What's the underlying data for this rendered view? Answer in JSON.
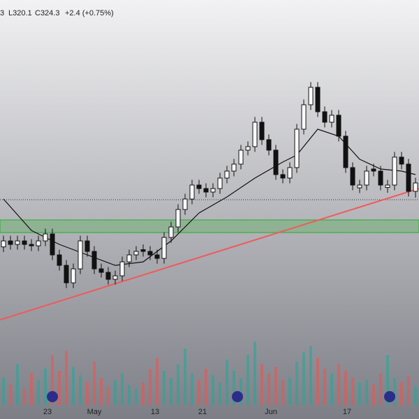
{
  "chart_data": {
    "type": "candlestick",
    "header": {
      "fragment": "3",
      "low": "L320.1",
      "close": "C324.3",
      "change": "+2.4 (+0.75%)"
    },
    "xlim": [
      -0.5,
      59.5
    ],
    "ylim": [
      260.7,
      375.7
    ],
    "xticks": [
      {
        "value": 6.3,
        "label": "23"
      },
      {
        "value": 13,
        "label": "May"
      },
      {
        "value": 21.7,
        "label": "13"
      },
      {
        "value": 28.5,
        "label": "21"
      },
      {
        "value": 38.3,
        "label": "Jun"
      },
      {
        "value": 49.2,
        "label": "17"
      }
    ],
    "up_color": "#26a69a",
    "down_color": "#ef5350",
    "open": [
      306.0,
      307.7,
      306.7,
      307.7,
      306.7,
      306.3,
      307.7,
      309.7,
      303.7,
      300.7,
      295.7,
      299.7,
      307.7,
      304.7,
      299.7,
      298.7,
      296.7,
      297.7,
      301.7,
      303.7,
      305.2,
      304.7,
      303.7,
      302.7,
      308.7,
      311.7,
      316.7,
      319.7,
      323.7,
      322.7,
      321.7,
      322.7,
      325.7,
      327.7,
      329.7,
      333.7,
      334.7,
      341.7,
      336.7,
      333.7,
      326.7,
      325.7,
      328.7,
      339.7,
      346.7,
      351.7,
      344.7,
      341.7,
      343.7,
      337.7,
      328.7,
      322.9,
      323.7,
      328.3,
      327.7,
      323.0,
      323.7,
      331.7,
      329.7,
      321.9
    ],
    "high": [
      309.2,
      309.2,
      309.2,
      309.2,
      308.2,
      309.2,
      311.2,
      311.2,
      305.2,
      302.2,
      301.2,
      309.2,
      309.2,
      306.2,
      301.2,
      300.2,
      299.2,
      303.2,
      305.2,
      306.2,
      306.7,
      306.2,
      305.2,
      310.2,
      313.2,
      318.2,
      321.2,
      325.2,
      325.2,
      324.2,
      324.2,
      327.2,
      329.2,
      331.2,
      335.2,
      336.2,
      343.2,
      343.2,
      338.2,
      335.2,
      328.2,
      330.2,
      341.2,
      348.2,
      353.2,
      353.2,
      346.2,
      345.2,
      345.2,
      339.2,
      330.2,
      325.2,
      329.2,
      329.8,
      329.2,
      325.2,
      333.2,
      333.2,
      331.2,
      325.8
    ],
    "low": [
      304.5,
      305.2,
      305.2,
      305.2,
      304.8,
      304.8,
      306.2,
      302.2,
      299.2,
      294.2,
      294.2,
      298.2,
      303.2,
      298.2,
      297.2,
      295.2,
      295.2,
      296.2,
      300.2,
      302.2,
      303.2,
      302.2,
      301.2,
      301.2,
      307.2,
      310.2,
      315.2,
      318.2,
      321.2,
      320.2,
      320.2,
      321.2,
      324.2,
      326.2,
      328.2,
      332.2,
      333.2,
      335.2,
      332.2,
      325.2,
      324.2,
      324.2,
      327.2,
      338.2,
      345.2,
      343.2,
      340.2,
      340.2,
      336.2,
      327.2,
      322.2,
      321.4,
      322.2,
      326.2,
      322.2,
      321.5,
      322.2,
      328.2,
      320.4,
      320.1
    ],
    "close": [
      307.7,
      306.7,
      307.7,
      306.7,
      306.3,
      307.7,
      309.7,
      303.7,
      300.7,
      295.7,
      299.7,
      307.7,
      304.7,
      299.7,
      298.7,
      296.7,
      297.7,
      301.7,
      303.7,
      304.7,
      304.7,
      303.7,
      302.7,
      308.7,
      311.7,
      316.7,
      319.7,
      323.7,
      322.7,
      321.7,
      322.7,
      325.7,
      327.7,
      329.7,
      333.7,
      334.7,
      341.7,
      336.7,
      333.7,
      326.7,
      325.7,
      328.7,
      339.7,
      346.7,
      351.7,
      344.7,
      341.7,
      343.7,
      337.7,
      328.7,
      323.7,
      323.7,
      327.7,
      327.7,
      323.7,
      323.7,
      331.7,
      329.7,
      321.9,
      324.3
    ],
    "moving_average": {
      "color": "#111111",
      "x": [
        0,
        4,
        8,
        12,
        16,
        20,
        24,
        28,
        32,
        36,
        40,
        42,
        45,
        48,
        51,
        54,
        57,
        59
      ],
      "values": [
        319.7,
        310.7,
        306.7,
        303.7,
        300.7,
        301.7,
        307.7,
        315.7,
        320.3,
        325.7,
        330.3,
        332.3,
        339.7,
        337.7,
        331.1,
        328.3,
        327.7,
        326.7
      ]
    },
    "volume": {
      "vlim": [
        0,
        100
      ],
      "values": [
        30,
        22,
        45,
        18,
        35,
        28,
        40,
        55,
        38,
        60,
        42,
        33,
        25,
        48,
        30,
        20,
        27,
        35,
        22,
        18,
        25,
        40,
        52,
        38,
        30,
        45,
        62,
        35,
        28,
        40,
        33,
        25,
        50,
        38,
        30,
        55,
        70,
        45,
        35,
        42,
        28,
        30,
        48,
        58,
        65,
        52,
        40,
        35,
        45,
        38,
        30,
        25,
        28,
        22,
        35,
        55,
        30,
        25,
        32,
        20
      ]
    },
    "trendline": {
      "color": "#f05a5a",
      "x": [
        -0.5,
        59.5
      ],
      "values": [
        285.1,
        322.7
      ]
    },
    "zone": {
      "color": "#4caf50",
      "values": [
        310.1,
        313.7
      ]
    },
    "reference_line": {
      "value": 319.5
    }
  }
}
